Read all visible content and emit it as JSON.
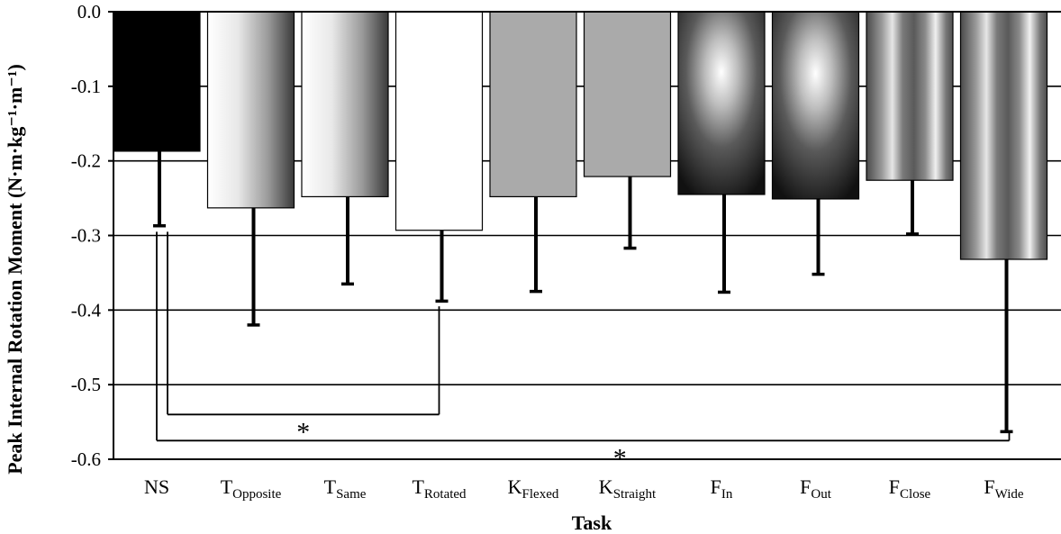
{
  "chart_data": {
    "type": "bar",
    "orientation": "downward",
    "categories": [
      {
        "base": "NS",
        "sub": ""
      },
      {
        "base": "T",
        "sub": "Opposite"
      },
      {
        "base": "T",
        "sub": "Same"
      },
      {
        "base": "T",
        "sub": "Rotated"
      },
      {
        "base": "K",
        "sub": "Flexed"
      },
      {
        "base": "K",
        "sub": "Straight"
      },
      {
        "base": "F",
        "sub": "In"
      },
      {
        "base": "F",
        "sub": "Out"
      },
      {
        "base": "F",
        "sub": "Close"
      },
      {
        "base": "F",
        "sub": "Wide"
      }
    ],
    "values": [
      -0.187,
      -0.263,
      -0.248,
      -0.293,
      -0.248,
      -0.221,
      -0.245,
      -0.251,
      -0.226,
      -0.332
    ],
    "error_bars": [
      0.1,
      0.157,
      0.117,
      0.095,
      0.127,
      0.096,
      0.131,
      0.101,
      0.072,
      0.231
    ],
    "fills": [
      "solid-black",
      "horizontal-gradient-light-to-dark",
      "horizontal-gradient-light-to-dark",
      "white",
      "solid-gray",
      "solid-gray",
      "radial-gradient-white-center",
      "radial-gradient-white-center",
      "vertical-stripes-gray",
      "vertical-stripes-gray"
    ],
    "ylim": [
      -0.6,
      0.0
    ],
    "yticks": [
      0.0,
      -0.1,
      -0.2,
      -0.3,
      -0.4,
      -0.5,
      -0.6
    ],
    "ytick_labels": [
      "0.0",
      "-0.1",
      "-0.2",
      "-0.3",
      "-0.4",
      "-0.5",
      "-0.6"
    ],
    "grid": true,
    "xlabel": "Task",
    "ylabel": "Peak Internal Rotation Moment (N·m·kg⁻¹·m⁻¹)",
    "significance": [
      {
        "from": 0,
        "to": 3,
        "label": "*",
        "level": -0.54
      },
      {
        "from": 0,
        "to": 9,
        "label": "*",
        "level": -0.575
      }
    ]
  }
}
